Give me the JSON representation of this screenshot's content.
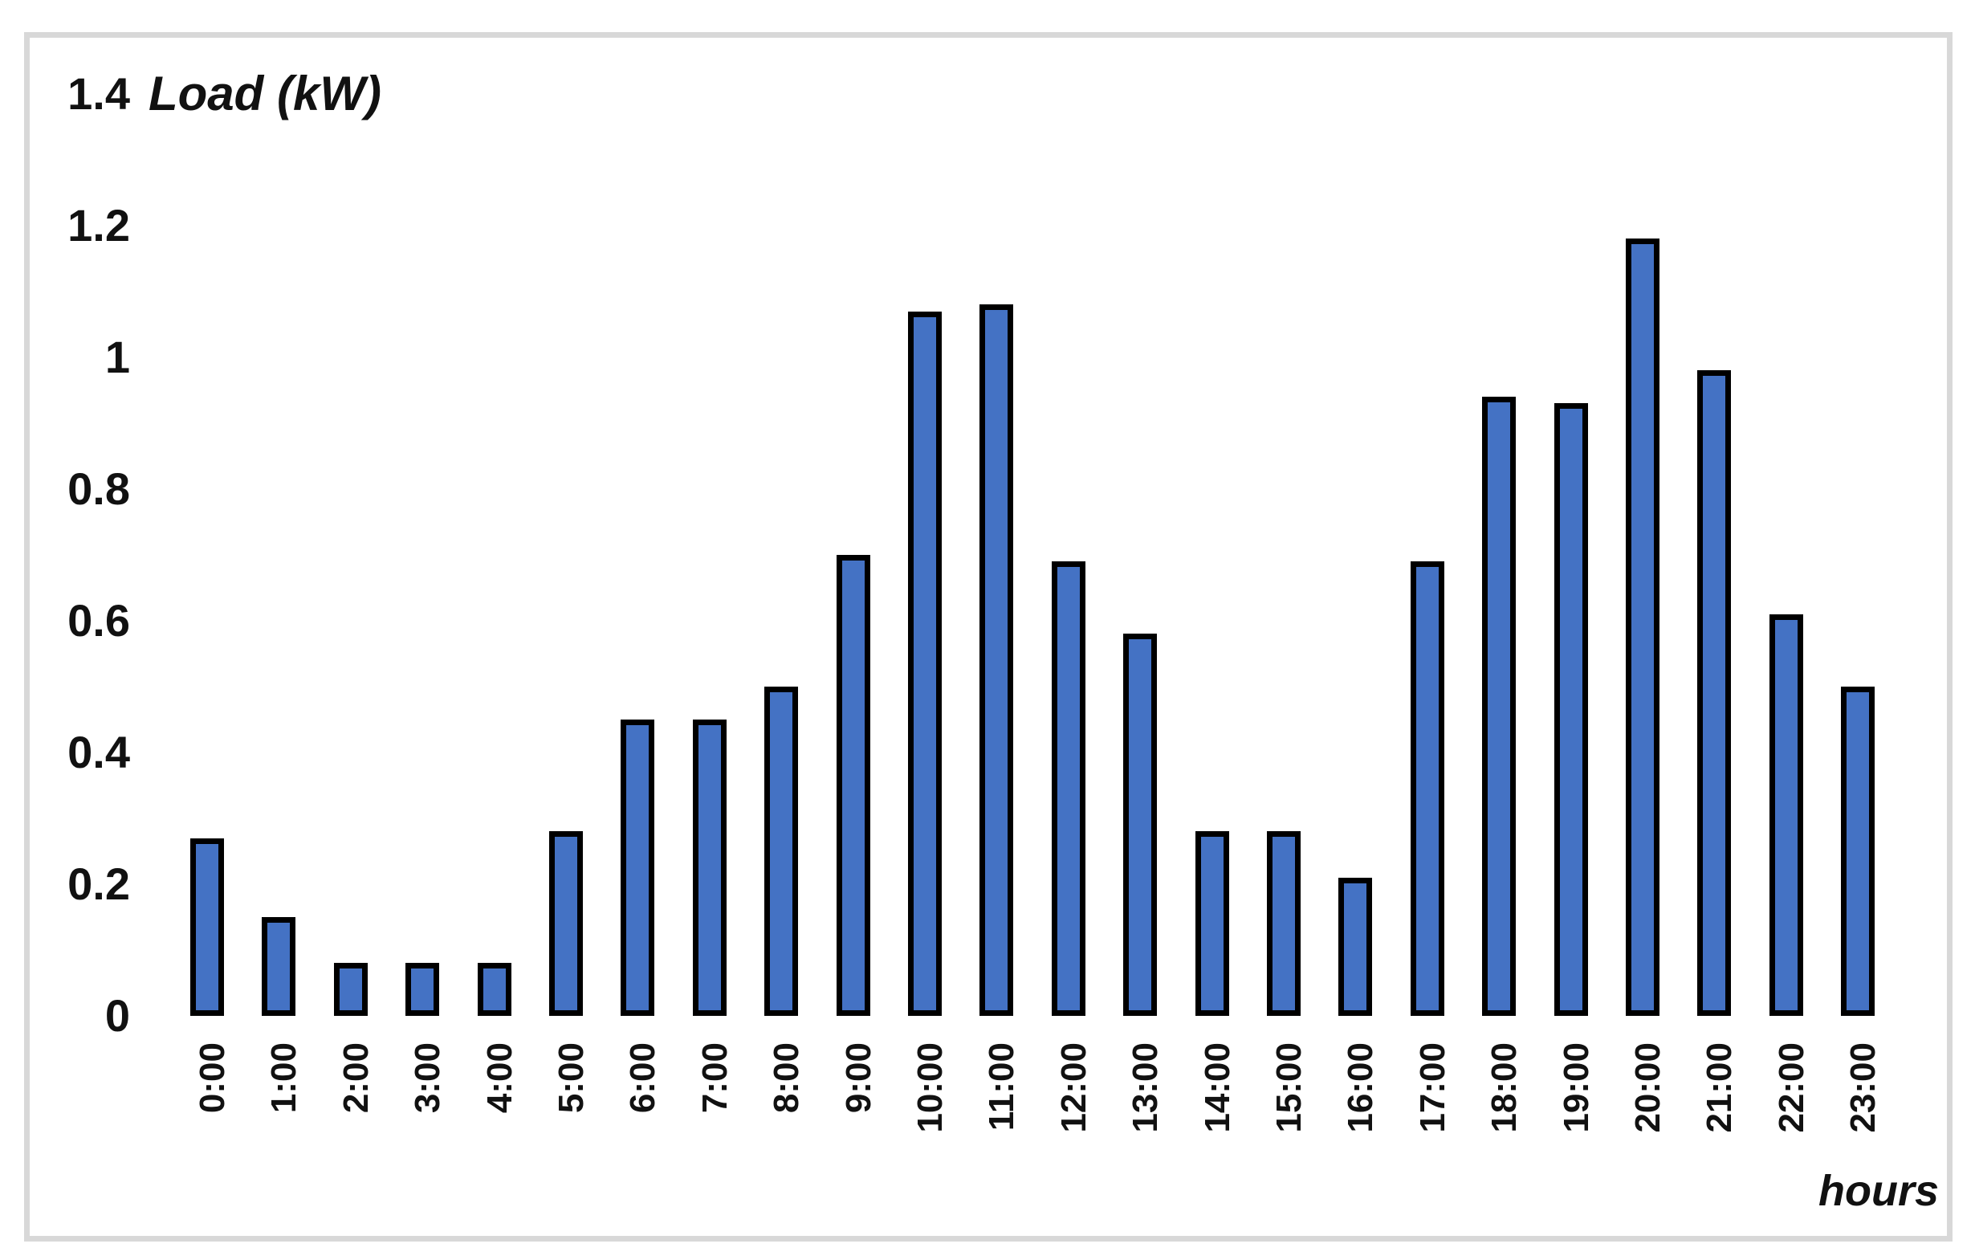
{
  "chart_data": {
    "type": "bar",
    "title": "Load (kW)",
    "xlabel": "hours",
    "ylabel": "",
    "categories": [
      "0:00",
      "1:00",
      "2:00",
      "3:00",
      "4:00",
      "5:00",
      "6:00",
      "7:00",
      "8:00",
      "9:00",
      "10:00",
      "11:00",
      "12:00",
      "13:00",
      "14:00",
      "15:00",
      "16:00",
      "17:00",
      "18:00",
      "19:00",
      "20:00",
      "21:00",
      "22:00",
      "23:00"
    ],
    "values": [
      0.27,
      0.15,
      0.08,
      0.08,
      0.08,
      0.28,
      0.45,
      0.45,
      0.5,
      0.7,
      1.07,
      1.08,
      0.69,
      0.58,
      0.28,
      0.28,
      0.21,
      0.69,
      0.94,
      0.93,
      1.18,
      0.98,
      0.61,
      0.5
    ],
    "y_ticks": [
      "1.4",
      "1.2",
      "1",
      "0.8",
      "0.6",
      "0.4",
      "0.2",
      "0"
    ],
    "y_tick_values": [
      1.4,
      1.2,
      1.0,
      0.8,
      0.6,
      0.4,
      0.2,
      0.0
    ],
    "ylim": [
      0,
      1.4
    ],
    "grid": false,
    "legend": "none",
    "bar_color": "#4472C4",
    "bar_border_color": "#000000",
    "frame_color": "#D8D8D8",
    "text_color": "#111111"
  }
}
